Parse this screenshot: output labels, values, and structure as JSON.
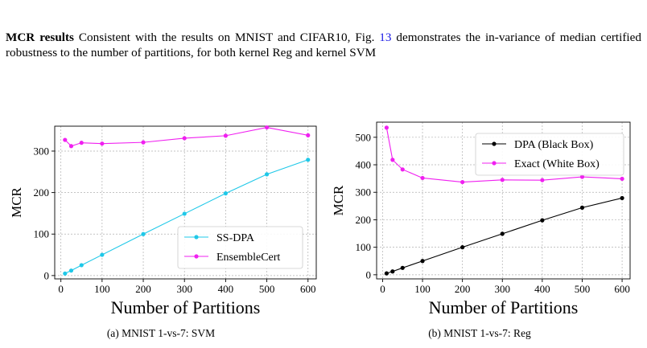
{
  "paragraph": {
    "heading": "MCR results",
    "text_before_ref": " Consistent with the results on MNIST and CIFAR10, Fig. ",
    "ref": "13",
    "text_after_ref": " demonstrates the in-variance of median certified robustness to the number of partitions, for both kernel Reg and kernel SVM"
  },
  "captions": {
    "a": "(a) MNIST 1-vs-7: SVM",
    "b": "(b) MNIST 1-vs-7: Reg"
  },
  "chart_data": [
    {
      "type": "line",
      "xlabel": "Number of Partitions",
      "ylabel": "MCR",
      "xlim": [
        -15,
        620
      ],
      "ylim": [
        -8,
        360
      ],
      "xticks": [
        0,
        100,
        200,
        300,
        400,
        500,
        600
      ],
      "yticks": [
        0,
        100,
        200,
        300
      ],
      "grid": true,
      "legend_position": "lower-right",
      "series": [
        {
          "name": "SS-DPA",
          "color": "#1fc8e8",
          "x": [
            10,
            25,
            50,
            100,
            200,
            300,
            400,
            500,
            600
          ],
          "y": [
            5,
            12,
            25,
            50,
            100,
            149,
            198,
            244,
            279
          ]
        },
        {
          "name": "EnsembleCert",
          "color": "#f020f0",
          "x": [
            10,
            25,
            50,
            100,
            200,
            300,
            400,
            500,
            600
          ],
          "y": [
            327,
            312,
            320,
            318,
            321,
            331,
            337,
            357,
            338
          ]
        }
      ]
    },
    {
      "type": "line",
      "xlabel": "Number of Partitions",
      "ylabel": "MCR",
      "xlim": [
        -15,
        620
      ],
      "ylim": [
        -15,
        555
      ],
      "xticks": [
        0,
        100,
        200,
        300,
        400,
        500,
        600
      ],
      "yticks": [
        0,
        100,
        200,
        300,
        400,
        500
      ],
      "grid": true,
      "legend_position": "upper-right",
      "series": [
        {
          "name": "DPA (Black Box)",
          "color": "#000000",
          "x": [
            10,
            25,
            50,
            100,
            200,
            300,
            400,
            500,
            600
          ],
          "y": [
            5,
            12,
            25,
            50,
            100,
            149,
            198,
            244,
            279
          ]
        },
        {
          "name": "Exact (White Box)",
          "color": "#f020f0",
          "x": [
            10,
            25,
            50,
            100,
            200,
            300,
            400,
            500,
            600
          ],
          "y": [
            535,
            418,
            383,
            352,
            337,
            345,
            344,
            356,
            349
          ]
        }
      ]
    }
  ]
}
